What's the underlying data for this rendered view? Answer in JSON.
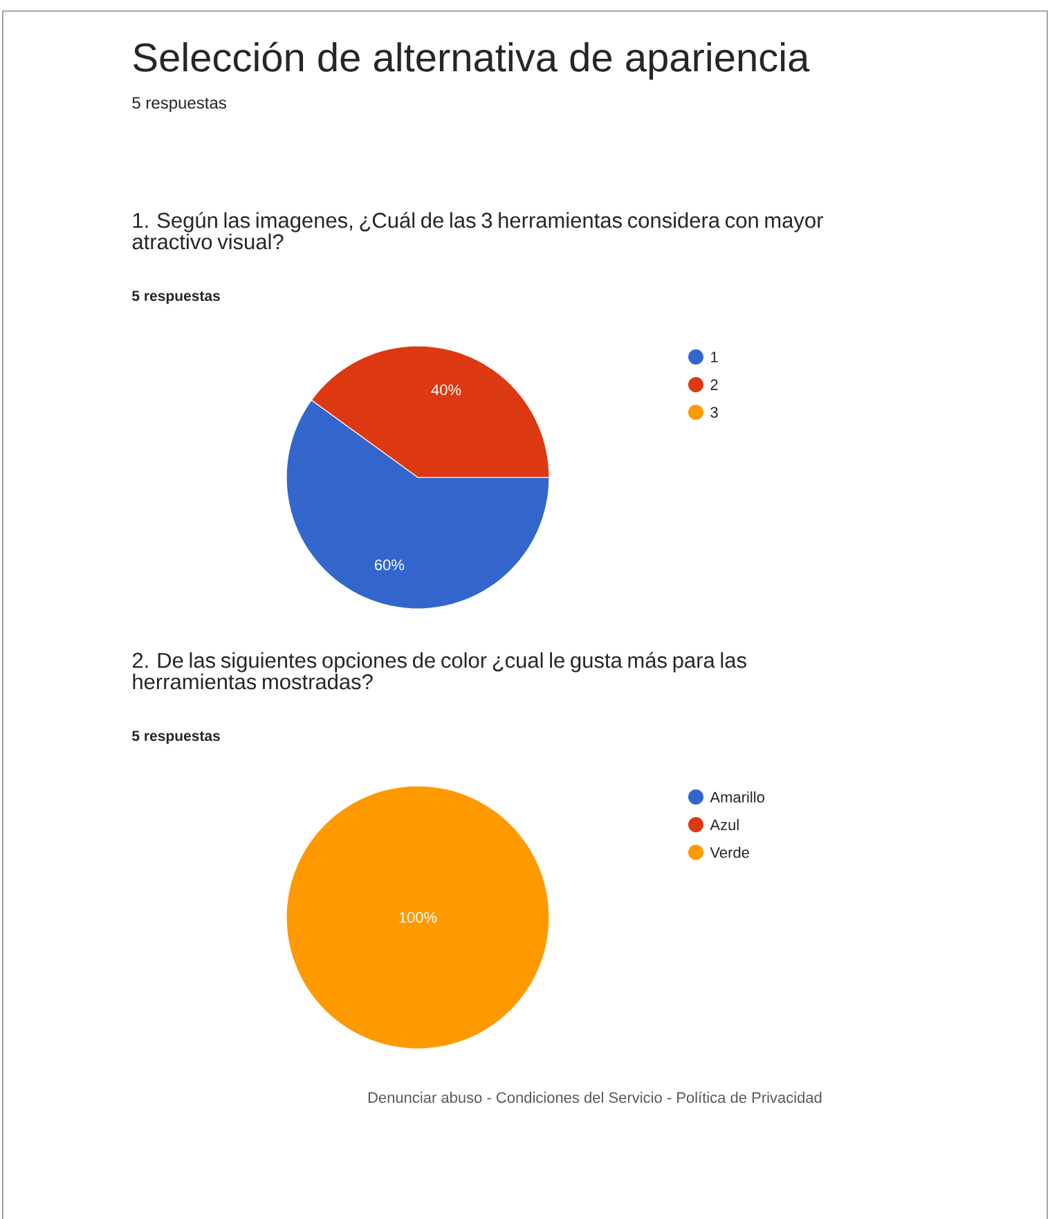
{
  "chart_data": [
    {
      "type": "other",
      "title": "Selección de alternativa de apariencia",
      "subtitle": "5 respuestas"
    },
    {
      "type": "pie",
      "title": "1. Según las imagenes, ¿Cuál de las 3 herramientas considera con mayor atractivo visual?",
      "subtitle": "5 respuestas",
      "categories": [
        "1",
        "2",
        "3"
      ],
      "values": [
        60,
        40,
        0
      ],
      "colors": [
        "#3366cc",
        "#dc3912",
        "#ff9900"
      ],
      "value_labels": [
        "60%",
        "40%",
        null
      ],
      "legend": "right"
    },
    {
      "type": "pie",
      "title": "2. De las siguientes opciones de color ¿cual le gusta más para las herramientas mostradas?",
      "subtitle": "5 respuestas",
      "categories": [
        "Amarillo",
        "Azul",
        "Verde"
      ],
      "values": [
        0,
        0,
        100
      ],
      "colors": [
        "#3366cc",
        "#dc3912",
        "#ff9900"
      ],
      "value_labels": [
        null,
        null,
        "100%"
      ],
      "legend": "right",
      "annotations": [
        "Denunciar abuso - Condiciones del Servicio - Política de Privacidad"
      ]
    }
  ]
}
